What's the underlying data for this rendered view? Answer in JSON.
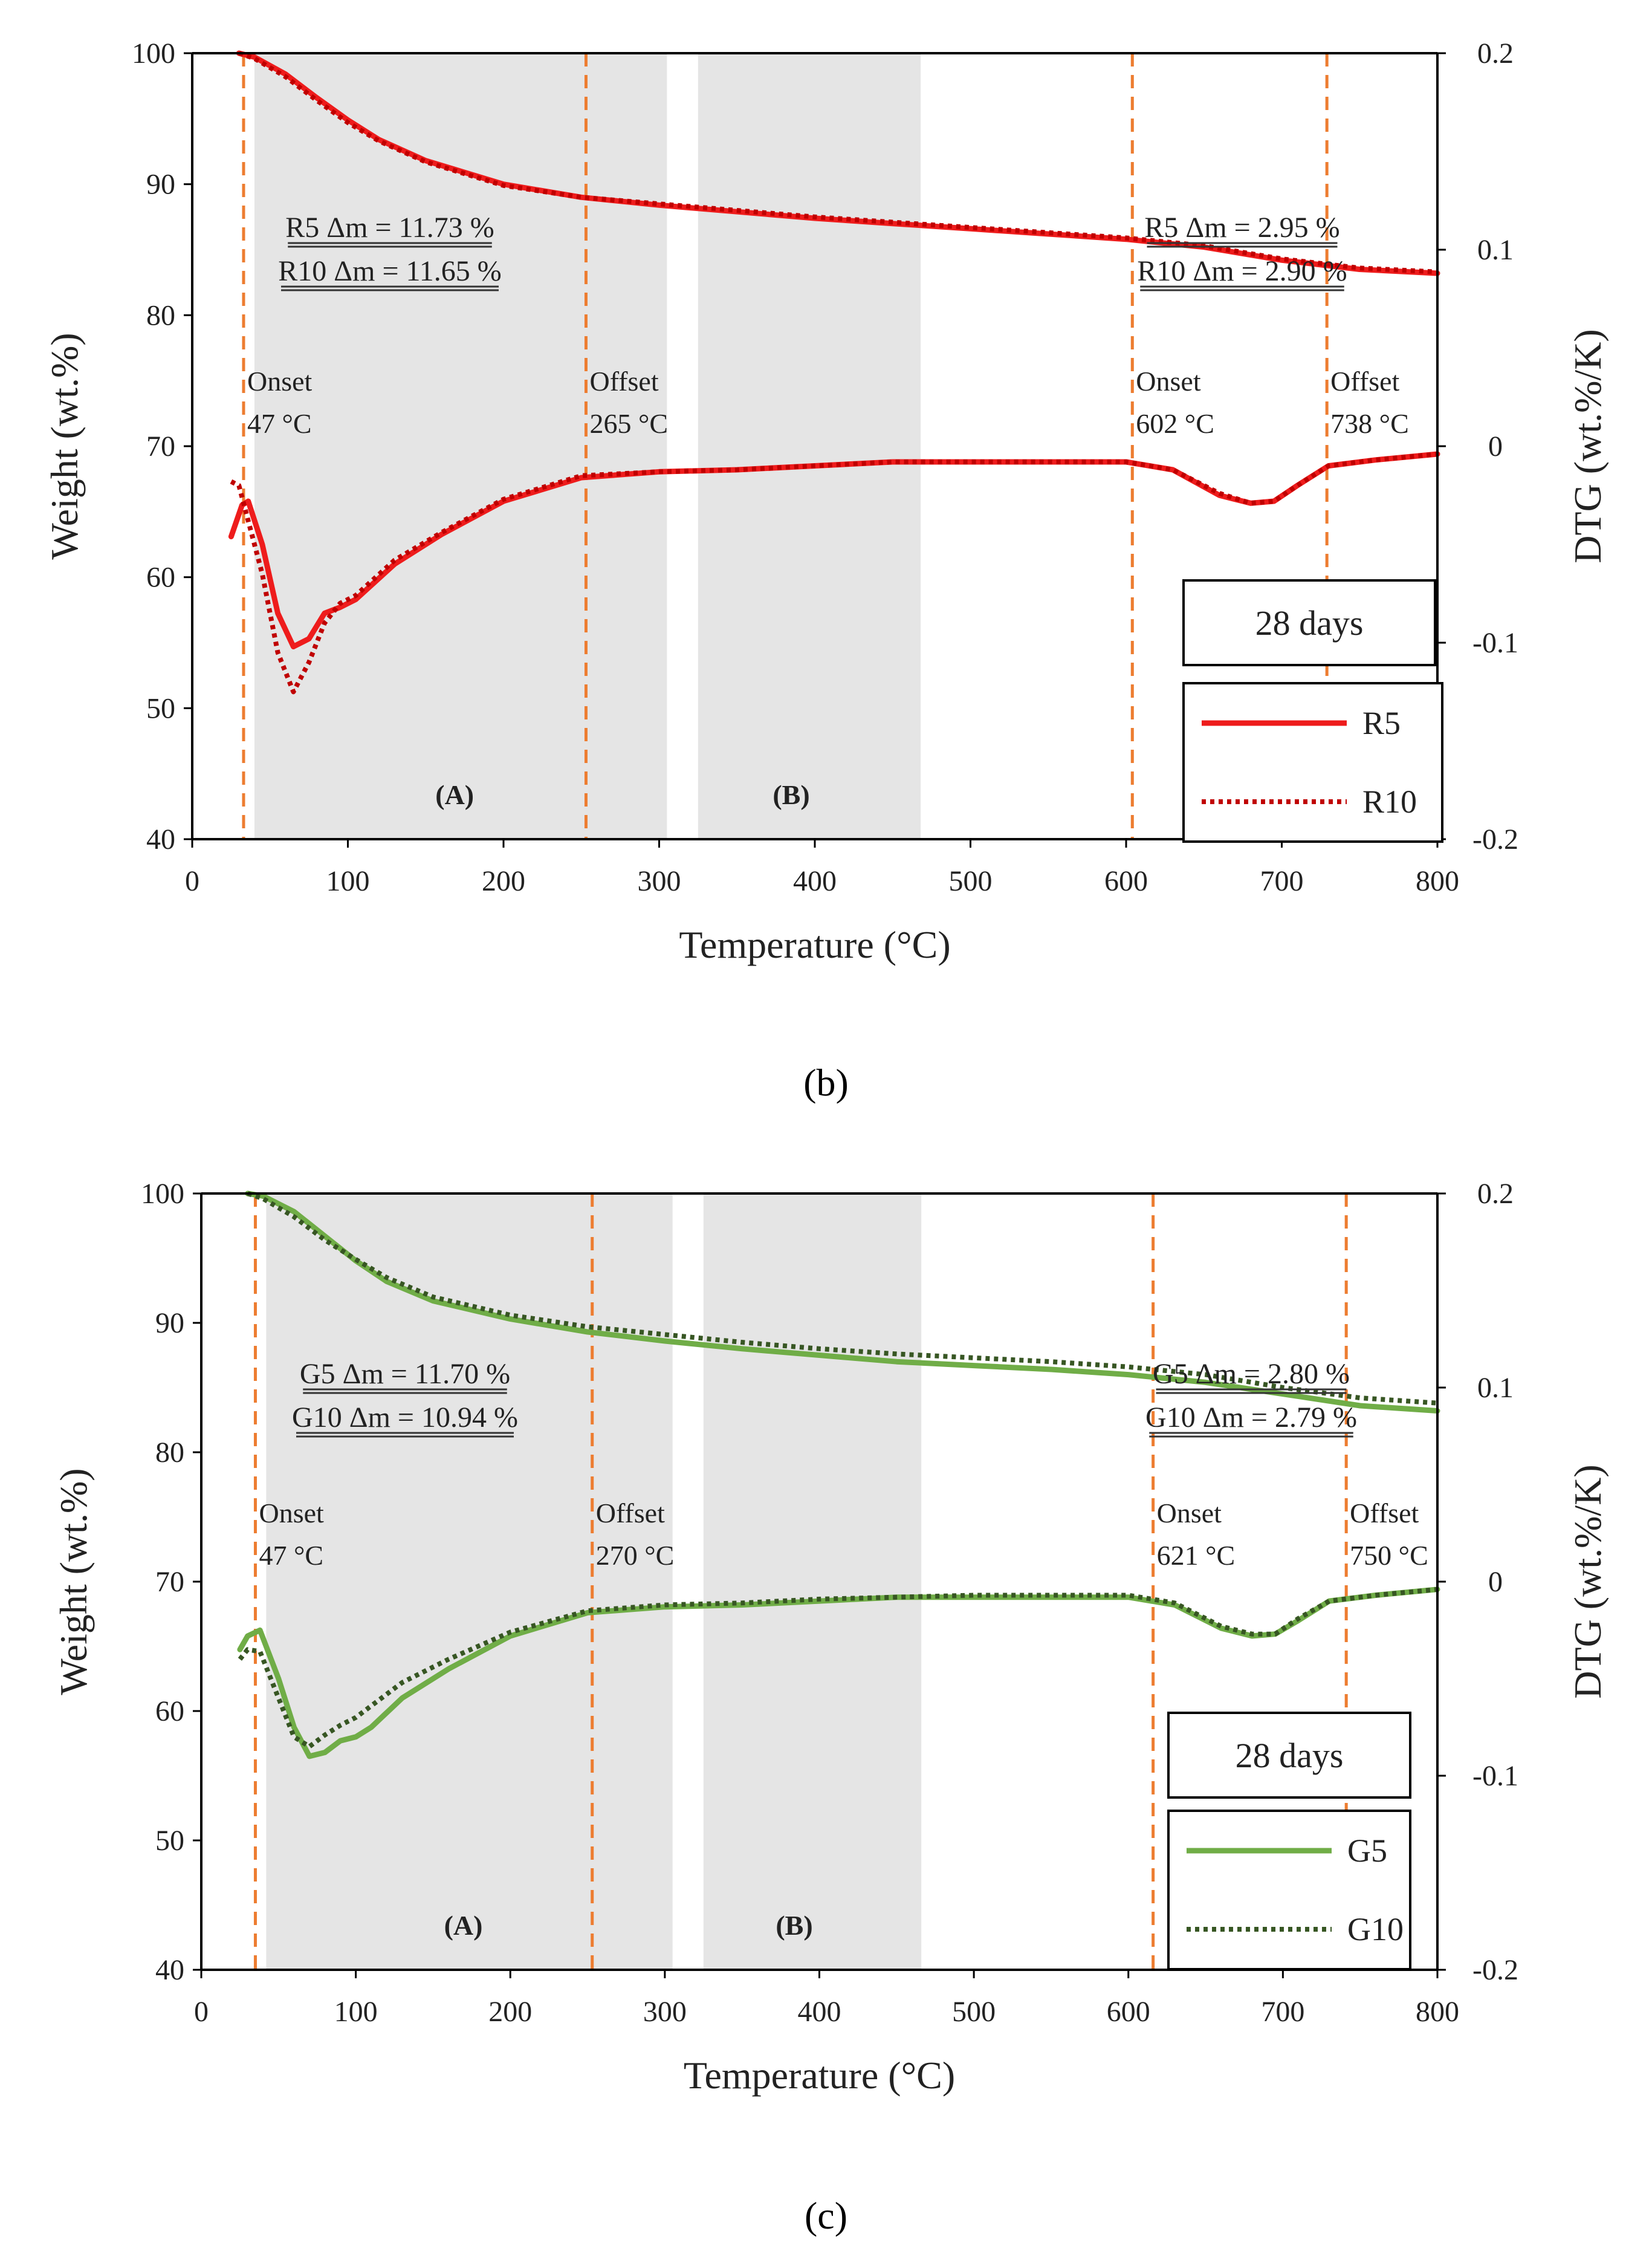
{
  "colors": {
    "red": "#ee1c1c",
    "green": "#70ad47",
    "dark_green": "#375623",
    "orange": "#ed7d31",
    "shade": "#e5e5e5",
    "axis": "#000000"
  },
  "figure_captions": {
    "b": "(b)",
    "c": "(c)"
  },
  "chart_data": [
    {
      "id": "b",
      "type": "line",
      "xlabel": "Temperature (°C)",
      "ylabel": "Weight (wt.%)",
      "y2label": "DTG (wt.%/K)",
      "xlim": [
        0,
        800
      ],
      "ylim": [
        40,
        100
      ],
      "y2lim": [
        -0.2,
        0.2
      ],
      "x_ticks": [
        "0",
        "100",
        "200",
        "300",
        "400",
        "500",
        "600",
        "700",
        "800"
      ],
      "y_ticks": [
        "40",
        "50",
        "60",
        "70",
        "80",
        "90",
        "100"
      ],
      "y2_ticks": [
        "-0.2",
        "-0.1",
        "0",
        "0.1",
        "0.2"
      ],
      "grid": false,
      "legend_position": "bottom-right",
      "note": "28 days",
      "shaded_regions": [
        {
          "label": "(A)",
          "x_start": 40,
          "x_end": 305
        },
        {
          "label": "(B)",
          "x_start": 325,
          "x_end": 468
        }
      ],
      "vlines": [
        {
          "x": 33,
          "label1": "Onset",
          "label2": "47 °C"
        },
        {
          "x": 253,
          "label1": "Offset",
          "label2": "265 °C"
        },
        {
          "x": 604,
          "label1": "Onset",
          "label2": "602 °C"
        },
        {
          "x": 729,
          "label1": "Offset",
          "label2": "738 °C"
        }
      ],
      "mass_loss_labels": [
        {
          "line1": "R5 Δm = 11.73 %",
          "line2": "R10 Δm = 11.65 %"
        },
        {
          "line1": "R5 Δm = 2.95 %",
          "line2": "R10 Δm = 2.90 %"
        }
      ],
      "series": [
        {
          "name": "R5",
          "kind": "weight",
          "style": "solid",
          "color": "#ee1c1c",
          "x": [
            30,
            40,
            60,
            80,
            100,
            120,
            150,
            200,
            250,
            300,
            350,
            400,
            450,
            500,
            550,
            600,
            650,
            700,
            750,
            800
          ],
          "values": [
            100,
            99.7,
            98.4,
            96.6,
            94.9,
            93.4,
            91.8,
            90.0,
            89.0,
            88.4,
            87.9,
            87.4,
            87.0,
            86.6,
            86.2,
            85.8,
            85.2,
            84.2,
            83.5,
            83.2
          ]
        },
        {
          "name": "R10",
          "kind": "weight",
          "style": "dotted",
          "color": "#c00000",
          "x": [
            30,
            40,
            60,
            80,
            100,
            120,
            150,
            200,
            250,
            300,
            350,
            400,
            450,
            500,
            550,
            600,
            650,
            700,
            750,
            800
          ],
          "values": [
            100,
            99.6,
            98.2,
            96.4,
            94.7,
            93.3,
            91.7,
            89.9,
            89.0,
            88.5,
            88.0,
            87.5,
            87.1,
            86.7,
            86.3,
            85.9,
            85.3,
            84.3,
            83.6,
            83.3
          ]
        },
        {
          "name": "R5",
          "kind": "dtg",
          "style": "solid",
          "color": "#ee1c1c",
          "x": [
            25,
            32,
            36,
            45,
            55,
            65,
            75,
            85,
            95,
            105,
            130,
            160,
            200,
            250,
            300,
            350,
            400,
            450,
            500,
            550,
            600,
            630,
            660,
            680,
            695,
            710,
            730,
            760,
            800
          ],
          "values": [
            -0.046,
            -0.03,
            -0.028,
            -0.05,
            -0.085,
            -0.102,
            -0.098,
            -0.085,
            -0.082,
            -0.078,
            -0.06,
            -0.045,
            -0.028,
            -0.016,
            -0.013,
            -0.012,
            -0.01,
            -0.008,
            -0.008,
            -0.008,
            -0.008,
            -0.012,
            -0.025,
            -0.029,
            -0.028,
            -0.02,
            -0.01,
            -0.007,
            -0.004
          ]
        },
        {
          "name": "R10",
          "kind": "dtg",
          "style": "dotted",
          "color": "#c00000",
          "x": [
            25,
            30,
            35,
            45,
            55,
            65,
            75,
            85,
            95,
            105,
            130,
            160,
            200,
            250,
            300,
            350,
            400,
            450,
            500,
            550,
            600,
            630,
            660,
            680,
            695,
            710,
            730,
            760,
            800
          ],
          "values": [
            -0.018,
            -0.02,
            -0.035,
            -0.065,
            -0.105,
            -0.125,
            -0.11,
            -0.09,
            -0.08,
            -0.076,
            -0.058,
            -0.044,
            -0.027,
            -0.015,
            -0.013,
            -0.012,
            -0.01,
            -0.008,
            -0.008,
            -0.008,
            -0.008,
            -0.012,
            -0.024,
            -0.029,
            -0.028,
            -0.02,
            -0.01,
            -0.007,
            -0.004
          ]
        }
      ]
    },
    {
      "id": "c",
      "type": "line",
      "xlabel": "Temperature (°C)",
      "ylabel": "Weight (wt.%)",
      "y2label": "DTG (wt.%/K)",
      "xlim": [
        0,
        800
      ],
      "ylim": [
        40,
        100
      ],
      "y2lim": [
        -0.2,
        0.2
      ],
      "x_ticks": [
        "0",
        "100",
        "200",
        "300",
        "400",
        "500",
        "600",
        "700",
        "800"
      ],
      "y_ticks": [
        "40",
        "50",
        "60",
        "70",
        "80",
        "90",
        "100"
      ],
      "y2_ticks": [
        "-0.2",
        "-0.1",
        "0",
        "0.1",
        "0.2"
      ],
      "grid": false,
      "legend_position": "bottom-right",
      "note": "28 days",
      "shaded_regions": [
        {
          "label": "(A)",
          "x_start": 42,
          "x_end": 305
        },
        {
          "label": "(B)",
          "x_start": 325,
          "x_end": 466
        }
      ],
      "vlines": [
        {
          "x": 35,
          "label1": "Onset",
          "label2": "47 °C"
        },
        {
          "x": 253,
          "label1": "Offset",
          "label2": "270 °C"
        },
        {
          "x": 616,
          "label1": "Onset",
          "label2": "621 °C"
        },
        {
          "x": 741,
          "label1": "Offset",
          "label2": "750 °C"
        }
      ],
      "mass_loss_labels": [
        {
          "line1": "G5 Δm = 11.70 %",
          "line2": "G10 Δm = 10.94 %"
        },
        {
          "line1": "G5 Δm = 2.80 %",
          "line2": "G10 Δm = 2.79 %"
        }
      ],
      "series": [
        {
          "name": "G5",
          "kind": "weight",
          "style": "solid",
          "color": "#70ad47",
          "x": [
            30,
            40,
            60,
            80,
            100,
            120,
            150,
            200,
            250,
            300,
            350,
            400,
            450,
            500,
            550,
            600,
            650,
            700,
            750,
            800
          ],
          "values": [
            100,
            99.8,
            98.6,
            96.7,
            94.8,
            93.2,
            91.7,
            90.3,
            89.3,
            88.6,
            88.0,
            87.5,
            87.0,
            86.7,
            86.4,
            86.0,
            85.4,
            84.5,
            83.6,
            83.2
          ]
        },
        {
          "name": "G10",
          "kind": "weight",
          "style": "dotted",
          "color": "#375623",
          "x": [
            30,
            40,
            60,
            80,
            100,
            120,
            150,
            200,
            250,
            300,
            350,
            400,
            450,
            500,
            550,
            600,
            650,
            700,
            750,
            800
          ],
          "values": [
            100,
            99.6,
            98.2,
            96.4,
            94.9,
            93.5,
            92.0,
            90.6,
            89.7,
            89.1,
            88.5,
            88.0,
            87.6,
            87.3,
            87.0,
            86.6,
            86.0,
            85.0,
            84.2,
            83.8
          ]
        },
        {
          "name": "G5",
          "kind": "dtg",
          "style": "solid",
          "color": "#70ad47",
          "x": [
            25,
            30,
            38,
            50,
            60,
            70,
            80,
            90,
            100,
            110,
            130,
            160,
            200,
            250,
            300,
            350,
            400,
            450,
            500,
            550,
            600,
            630,
            660,
            680,
            695,
            710,
            730,
            760,
            800
          ],
          "values": [
            -0.035,
            -0.028,
            -0.025,
            -0.05,
            -0.075,
            -0.09,
            -0.088,
            -0.082,
            -0.08,
            -0.075,
            -0.06,
            -0.045,
            -0.028,
            -0.016,
            -0.013,
            -0.012,
            -0.01,
            -0.008,
            -0.008,
            -0.008,
            -0.008,
            -0.012,
            -0.024,
            -0.028,
            -0.027,
            -0.02,
            -0.01,
            -0.007,
            -0.004
          ]
        },
        {
          "name": "G10",
          "kind": "dtg",
          "style": "dotted",
          "color": "#375623",
          "x": [
            25,
            30,
            38,
            50,
            60,
            70,
            80,
            90,
            100,
            110,
            130,
            160,
            200,
            250,
            300,
            350,
            400,
            450,
            500,
            550,
            600,
            630,
            660,
            680,
            695,
            710,
            730,
            760,
            800
          ],
          "values": [
            -0.04,
            -0.035,
            -0.036,
            -0.06,
            -0.08,
            -0.085,
            -0.079,
            -0.074,
            -0.07,
            -0.064,
            -0.052,
            -0.04,
            -0.026,
            -0.015,
            -0.012,
            -0.011,
            -0.009,
            -0.008,
            -0.007,
            -0.007,
            -0.007,
            -0.011,
            -0.023,
            -0.027,
            -0.027,
            -0.019,
            -0.01,
            -0.007,
            -0.004
          ]
        }
      ]
    }
  ]
}
